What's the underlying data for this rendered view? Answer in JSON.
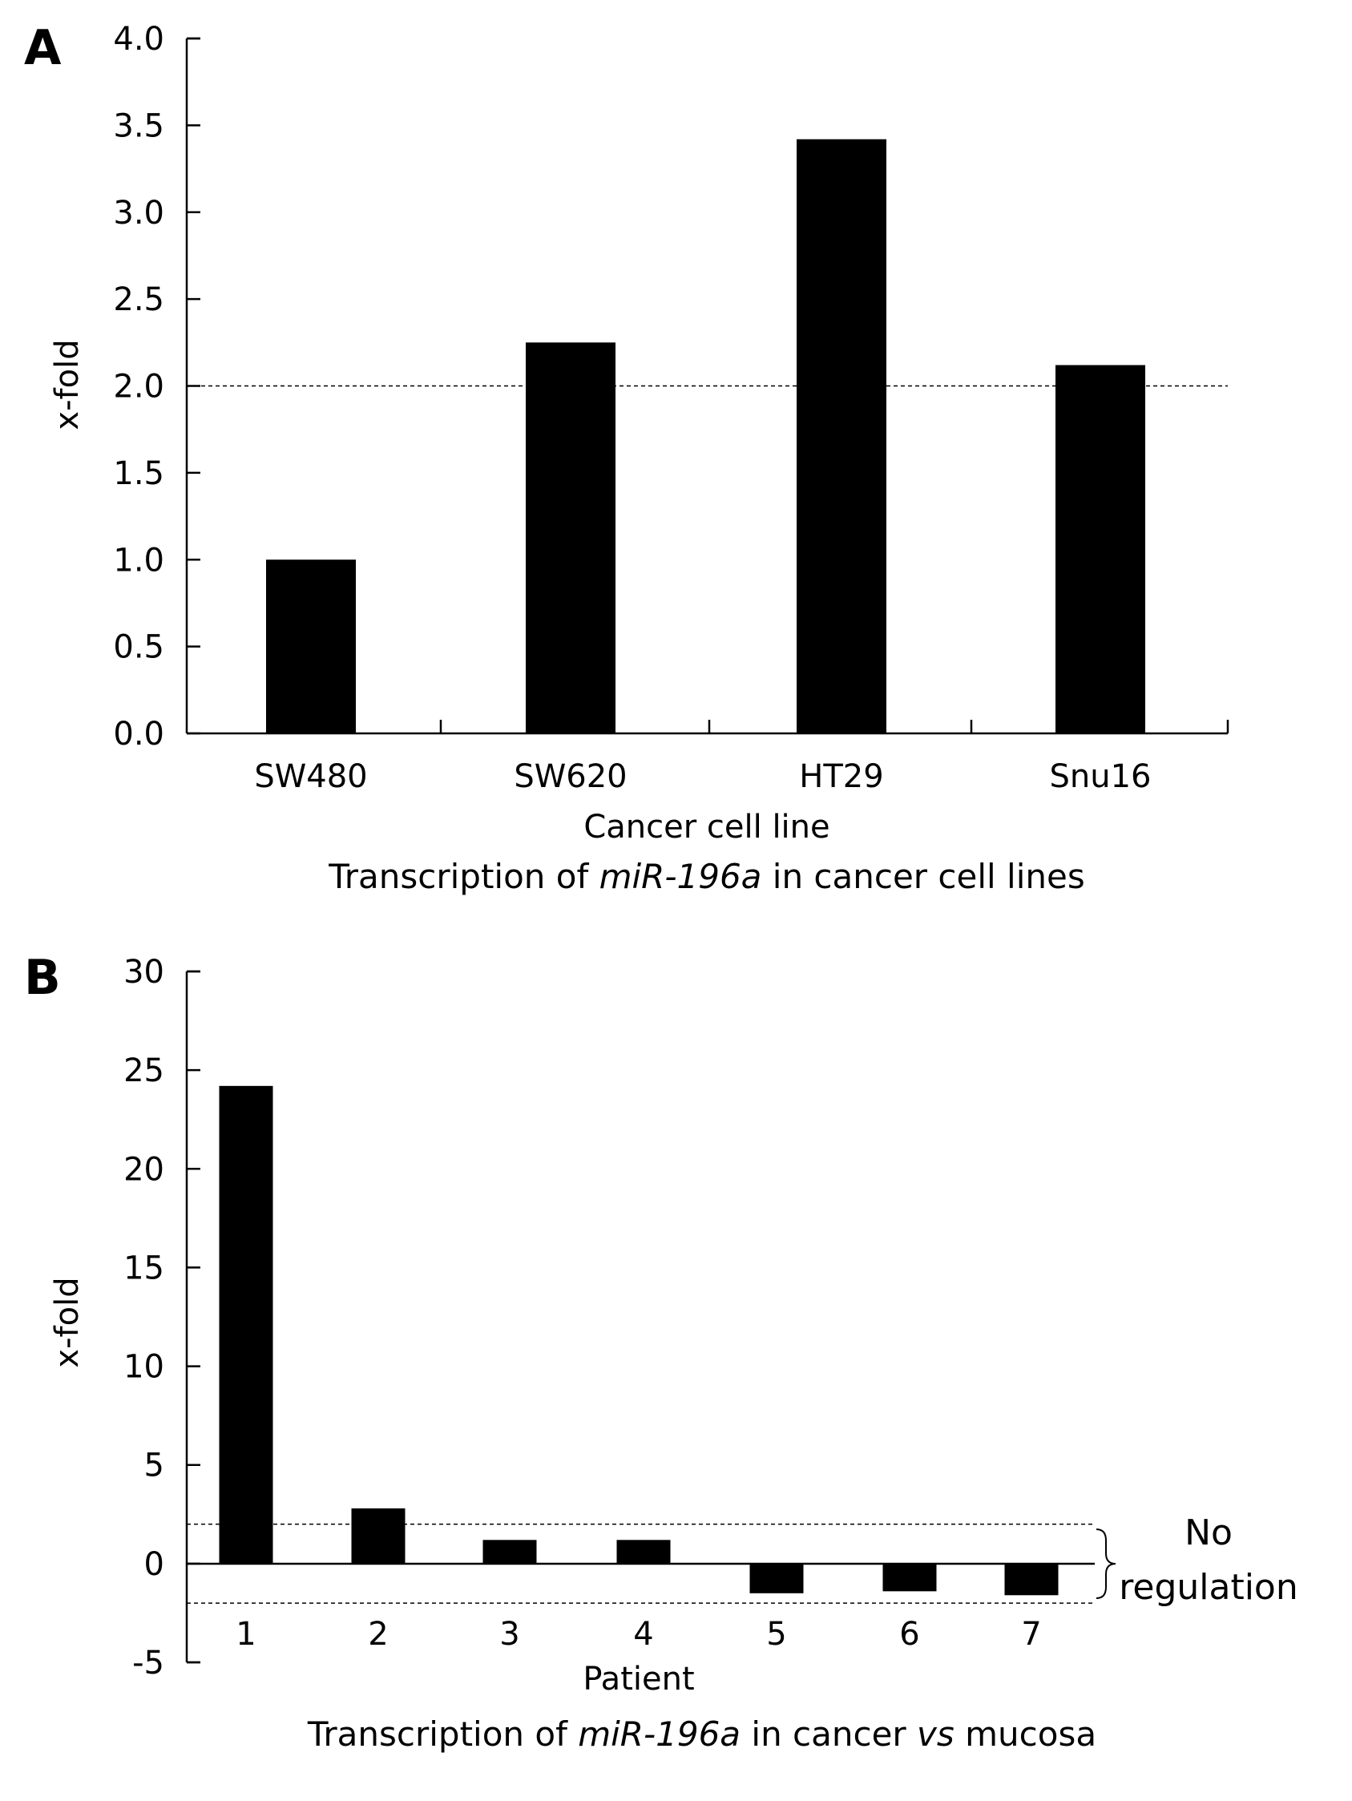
{
  "chart_data": [
    {
      "type": "bar",
      "panel": "A",
      "categories": [
        "SW480",
        "SW620",
        "HT29",
        "Snu16"
      ],
      "values": [
        1.0,
        2.25,
        3.42,
        2.12
      ],
      "xlabel": "Cancer cell line",
      "ylabel": "x-fold",
      "caption": {
        "pre": "Transcription of ",
        "italic": "miR-196a",
        "post": " in cancer cell lines"
      },
      "ylim": [
        0,
        4.0
      ],
      "yticks": [
        "0.0",
        "0.5",
        "1.0",
        "1.5",
        "2.0",
        "2.5",
        "3.0",
        "3.5",
        "4.0"
      ],
      "reference_lines": [
        2.0
      ],
      "bar_color": "#000000",
      "grid": false
    },
    {
      "type": "bar",
      "panel": "B",
      "categories": [
        "1",
        "2",
        "3",
        "4",
        "5",
        "6",
        "7"
      ],
      "values": [
        24.2,
        2.8,
        1.2,
        1.2,
        -1.5,
        -1.4,
        -1.6
      ],
      "xlabel": "Patient",
      "ylabel": "x-fold",
      "caption": {
        "pre": "Transcription of ",
        "italic": "miR-196a",
        "mid": " in cancer ",
        "italic2": "vs",
        "post": " mucosa"
      },
      "ylim": [
        -5,
        30
      ],
      "yticks": [
        "-5",
        "0",
        "5",
        "10",
        "15",
        "20",
        "25",
        "30"
      ],
      "reference_lines": [
        2,
        -2
      ],
      "annotation": {
        "line1": "No",
        "line2": "regulation"
      },
      "bar_color": "#000000",
      "grid": false
    }
  ]
}
